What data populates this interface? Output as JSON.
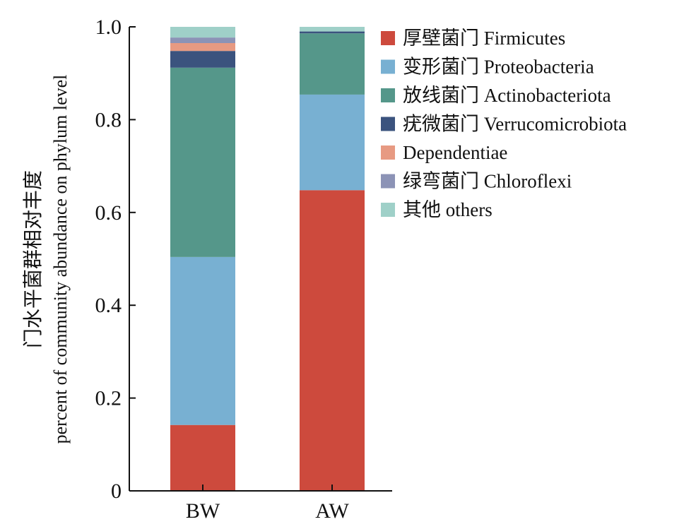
{
  "chart_data": {
    "type": "bar",
    "stacked": true,
    "categories": [
      "BW",
      "AW"
    ],
    "ylabel_cn": "门水平菌群相对丰度",
    "ylabel_en": "percent of community abundance on phylum level",
    "ylim": [
      0,
      1.0
    ],
    "yticks": [
      "0",
      "0.2",
      "0.4",
      "0.6",
      "0.8",
      "1.0"
    ],
    "ytick_values": [
      0,
      0.2,
      0.4,
      0.6,
      0.8,
      1.0
    ],
    "grid": false,
    "legend_position": "right",
    "series": [
      {
        "name": "厚壁菌门 Firmicutes",
        "color": "#cd4a3d",
        "values": [
          0.142,
          0.648
        ]
      },
      {
        "name": "变形菌门 Proteobacteria",
        "color": "#78b0d2",
        "values": [
          0.362,
          0.206
        ]
      },
      {
        "name": "放线菌门 Actinobacteriota",
        "color": "#55978a",
        "values": [
          0.408,
          0.132
        ]
      },
      {
        "name": "疣微菌门 Verrucomicrobiota",
        "color": "#3b537e",
        "values": [
          0.036,
          0.004
        ]
      },
      {
        "name": "Dependentiae",
        "color": "#e79a82",
        "values": [
          0.017,
          0.0
        ]
      },
      {
        "name": "绿弯菌门 Chloroflexi",
        "color": "#8c93b6",
        "values": [
          0.012,
          0.0
        ]
      },
      {
        "name": "其他 others",
        "color": "#9fd0c8",
        "values": [
          0.023,
          0.01
        ]
      }
    ]
  }
}
